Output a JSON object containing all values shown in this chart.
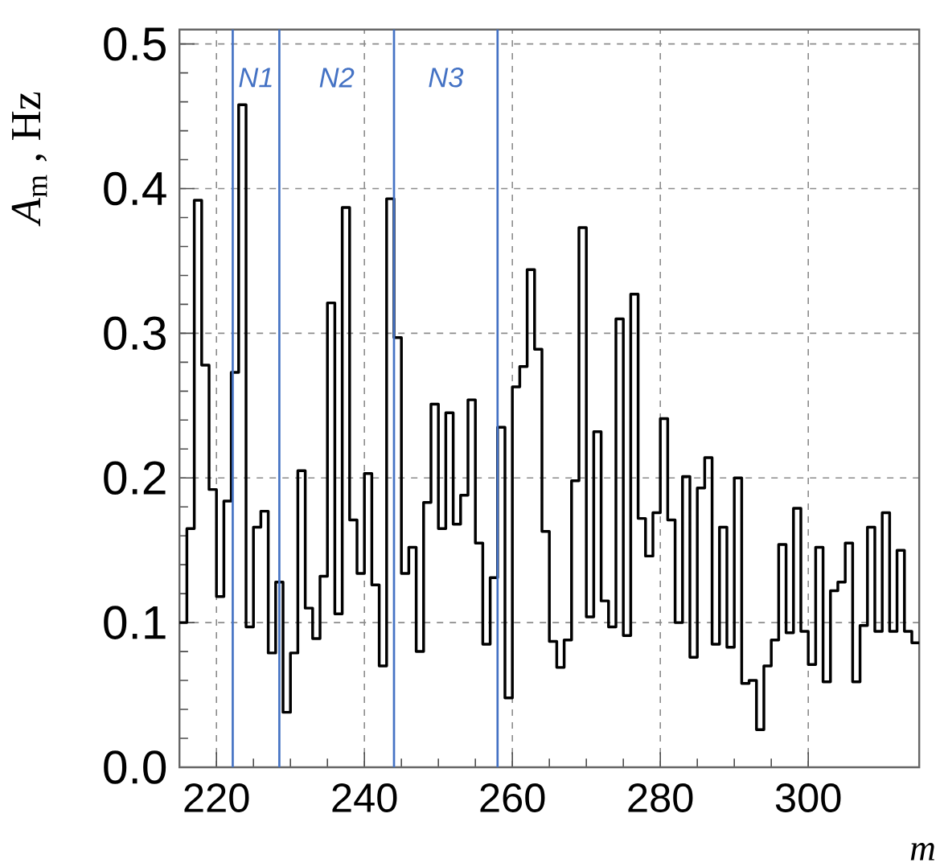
{
  "chart_data": {
    "type": "histogram",
    "ylabel": "*A*$_{m}$ , Hz",
    "xlabel": "m",
    "bins": [
      215,
      216,
      217,
      218,
      219,
      220,
      221,
      222,
      223,
      224,
      225,
      226,
      227,
      228,
      229,
      230,
      231,
      232,
      233,
      234,
      235,
      236,
      237,
      238,
      239,
      240,
      241,
      242,
      243,
      244,
      245,
      246,
      247,
      248,
      249,
      250,
      251,
      252,
      253,
      254,
      255,
      256,
      257,
      258,
      259,
      260,
      261,
      262,
      263,
      264,
      265,
      266,
      267,
      268,
      269,
      270,
      271,
      272,
      273,
      274,
      275,
      276,
      277,
      278,
      279,
      280,
      281,
      282,
      283,
      284,
      285,
      286,
      287,
      288,
      289,
      290,
      291,
      292,
      293,
      294,
      295,
      296,
      297,
      298,
      299,
      300,
      301,
      302,
      303,
      304,
      305,
      306,
      307,
      308,
      309,
      310,
      311,
      312,
      313,
      314,
      315
    ],
    "values": [
      0.1,
      0.165,
      0.392,
      0.278,
      0.192,
      0.118,
      0.184,
      0.273,
      0.458,
      0.097,
      0.166,
      0.177,
      0.079,
      0.128,
      0.038,
      0.079,
      0.205,
      0.11,
      0.089,
      0.132,
      0.321,
      0.106,
      0.387,
      0.171,
      0.134,
      0.203,
      0.126,
      0.07,
      0.393,
      0.297,
      0.134,
      0.152,
      0.08,
      0.183,
      0.251,
      0.165,
      0.245,
      0.168,
      0.188,
      0.254,
      0.155,
      0.085,
      0.131,
      0.235,
      0.048,
      0.263,
      0.277,
      0.344,
      0.289,
      0.163,
      0.087,
      0.069,
      0.088,
      0.198,
      0.373,
      0.104,
      0.232,
      0.115,
      0.097,
      0.31,
      0.091,
      0.327,
      0.172,
      0.146,
      0.176,
      0.241,
      0.171,
      0.1,
      0.201,
      0.076,
      0.193,
      0.214,
      0.085,
      0.166,
      0.083,
      0.2,
      0.058,
      0.06,
      0.026,
      0.07,
      0.088,
      0.154,
      0.093,
      0.179,
      0.094,
      0.071,
      0.152,
      0.059,
      0.122,
      0.128,
      0.155,
      0.059,
      0.098,
      0.166,
      0.094,
      0.176,
      0.094,
      0.15,
      0.094,
      0.086
    ],
    "color": "#000000",
    "xlim": [
      215,
      315
    ],
    "ylim": [
      0,
      0.51
    ],
    "xticks": [
      220,
      240,
      260,
      280,
      300
    ],
    "yticks": [
      {
        "value": 0,
        "label": "0.0"
      },
      {
        "value": 0.1,
        "label": "0.1"
      },
      {
        "value": 0.2,
        "label": "0.2"
      },
      {
        "value": 0.3,
        "label": "0.3"
      },
      {
        "value": 0.4,
        "label": "0.4"
      },
      {
        "value": 0.5,
        "label": "0.5"
      }
    ],
    "grid": true,
    "ref_lines": [
      {
        "axis": "x",
        "value": 222.2,
        "color": "#4472c4"
      },
      {
        "axis": "x",
        "value": 228.5,
        "color": "#4472c4"
      },
      {
        "axis": "x",
        "value": 244,
        "color": "#4472c4"
      },
      {
        "axis": "x",
        "value": 258,
        "color": "#4472c4"
      }
    ],
    "annotations": [
      "N1",
      "N2",
      "N3"
    ]
  }
}
